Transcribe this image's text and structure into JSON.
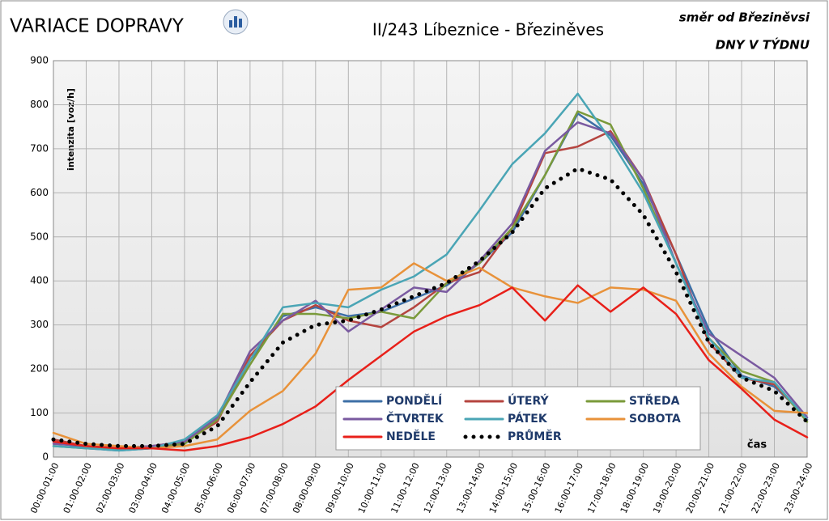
{
  "chart_data": {
    "type": "line",
    "title": "VARIACE DOPRAVY",
    "subtitle": "II/243 Líbeznice - Březiněves",
    "direction": "směr od Březiněvsi",
    "view": "DNY V TÝDNU",
    "y_label": "intenzita  [voz/h]",
    "x_label": "čas",
    "categories": [
      "00:00-01:00",
      "01:00-02:00",
      "02:00-03:00",
      "03:00-04:00",
      "04:00-05:00",
      "05:00-06:00",
      "06:00-07:00",
      "07:00-08:00",
      "08:00-09:00",
      "09:00-10:00",
      "10:00-11:00",
      "11:00-12:00",
      "12:00-13:00",
      "13:00-14:00",
      "14:00-15:00",
      "15:00-16:00",
      "16:00-17:00",
      "17:00-18:00",
      "18:00-19:00",
      "19:00-20:00",
      "20:00-21:00",
      "21:00-22:00",
      "22:00-23:00",
      "23:00-24:00"
    ],
    "ylim": [
      0,
      900
    ],
    "yticks": [
      0,
      100,
      200,
      300,
      400,
      500,
      600,
      700,
      800,
      900
    ],
    "grid": true,
    "series": [
      {
        "name": "PONDĚLÍ",
        "color": "#3d6fa6",
        "values": [
          35,
          20,
          15,
          20,
          30,
          90,
          220,
          320,
          340,
          320,
          330,
          360,
          390,
          440,
          510,
          640,
          780,
          730,
          620,
          460,
          290,
          185,
          160,
          90
        ]
      },
      {
        "name": "ÚTERÝ",
        "color": "#b5443f",
        "values": [
          40,
          25,
          20,
          25,
          35,
          80,
          230,
          310,
          345,
          310,
          295,
          340,
          395,
          420,
          520,
          690,
          705,
          740,
          630,
          460,
          260,
          180,
          165,
          85
        ]
      },
      {
        "name": "STŘEDA",
        "color": "#7a9a3a",
        "values": [
          25,
          20,
          20,
          25,
          30,
          85,
          210,
          325,
          325,
          315,
          330,
          315,
          395,
          440,
          520,
          640,
          785,
          755,
          610,
          440,
          270,
          195,
          170,
          80
        ]
      },
      {
        "name": "ČTVRTEK",
        "color": "#7a5aa0",
        "values": [
          30,
          25,
          20,
          25,
          35,
          90,
          240,
          310,
          355,
          285,
          335,
          385,
          375,
          445,
          530,
          695,
          760,
          735,
          630,
          440,
          280,
          230,
          180,
          90
        ]
      },
      {
        "name": "PÁTEK",
        "color": "#4aa5b5",
        "values": [
          25,
          20,
          15,
          20,
          40,
          95,
          220,
          340,
          350,
          340,
          380,
          410,
          460,
          560,
          665,
          735,
          825,
          720,
          600,
          440,
          270,
          180,
          170,
          85
        ]
      },
      {
        "name": "SOBOTA",
        "color": "#e8923a",
        "values": [
          55,
          30,
          25,
          20,
          25,
          40,
          105,
          150,
          235,
          380,
          385,
          440,
          400,
          430,
          385,
          365,
          350,
          385,
          380,
          355,
          235,
          160,
          105,
          100
        ]
      },
      {
        "name": "NEDĚLE",
        "color": "#e8201a",
        "values": [
          35,
          25,
          20,
          20,
          15,
          25,
          45,
          75,
          115,
          175,
          230,
          285,
          320,
          345,
          385,
          310,
          390,
          330,
          385,
          325,
          220,
          155,
          85,
          45
        ]
      },
      {
        "name": "PRŮMĚR",
        "color": "#000000",
        "line_style": "dotted",
        "values": [
          40,
          30,
          25,
          25,
          30,
          70,
          170,
          260,
          300,
          310,
          335,
          365,
          395,
          445,
          510,
          610,
          655,
          630,
          550,
          420,
          260,
          180,
          150,
          80
        ]
      }
    ]
  }
}
